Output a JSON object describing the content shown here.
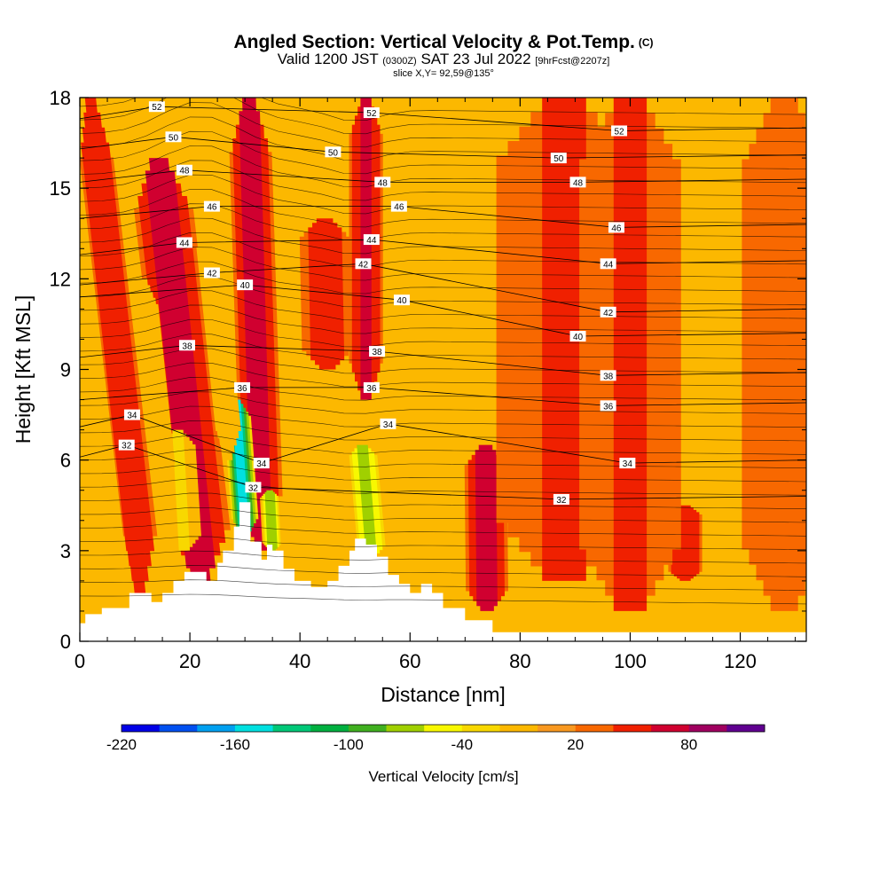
{
  "header": {
    "title": "Angled Section: Vertical Velocity & Pot.Temp.",
    "title_mark": "(C)",
    "valid_prefix": "Valid 1200 JST",
    "valid_z": "(0300Z)",
    "valid_date": "SAT 23 Jul 2022",
    "forecast": "[9hrFcst@2207z]",
    "slice": "slice X,Y= 92,59@135°"
  },
  "chart_data": {
    "type": "heatmap",
    "xlabel": "Distance [nm]",
    "ylabel": "Height [Kft MSL]",
    "xlim": [
      0,
      132
    ],
    "ylim": [
      0,
      18
    ],
    "x_ticks": [
      "0",
      "20",
      "40",
      "60",
      "80",
      "100",
      "120"
    ],
    "y_ticks": [
      "0",
      "3",
      "6",
      "9",
      "12",
      "15",
      "18"
    ],
    "background_color": "#fcb800",
    "colorbar": {
      "label": "Vertical Velocity [cm/s]",
      "tick_labels": [
        "-220",
        "-160",
        "-100",
        "-40",
        "20",
        "80"
      ],
      "colors": [
        "#0000e6",
        "#0050f0",
        "#00a0f0",
        "#00e0e0",
        "#00c878",
        "#00b040",
        "#40b020",
        "#a0d000",
        "#f8f800",
        "#f8d800",
        "#fcb800",
        "#f89820",
        "#f86800",
        "#f02000",
        "#d00030",
        "#a00060",
        "#600090"
      ]
    },
    "topography": [
      [
        0,
        0.6
      ],
      [
        1,
        0.9
      ],
      [
        4,
        1.1
      ],
      [
        9,
        1.6
      ],
      [
        13,
        1.3
      ],
      [
        15,
        1.6
      ],
      [
        17,
        2.0
      ],
      [
        19,
        2.3
      ],
      [
        23,
        2.0
      ],
      [
        25,
        2.6
      ],
      [
        26,
        3.0
      ],
      [
        28,
        3.8
      ],
      [
        29,
        4.6
      ],
      [
        31,
        3.3
      ],
      [
        33,
        2.7
      ],
      [
        34,
        3.2
      ],
      [
        35,
        3.0
      ],
      [
        37,
        2.4
      ],
      [
        39,
        2.0
      ],
      [
        42,
        1.8
      ],
      [
        45,
        2.0
      ],
      [
        47,
        2.5
      ],
      [
        49,
        3.0
      ],
      [
        50,
        3.4
      ],
      [
        52,
        3.2
      ],
      [
        54,
        2.8
      ],
      [
        56,
        2.2
      ],
      [
        58,
        1.9
      ],
      [
        60,
        1.6
      ],
      [
        62,
        1.9
      ],
      [
        64,
        1.6
      ],
      [
        66,
        1.1
      ],
      [
        70,
        0.7
      ],
      [
        75,
        0.3
      ],
      [
        84,
        0.3
      ],
      [
        132,
        0.3
      ]
    ],
    "updraft_bands": [
      {
        "x": 11,
        "y0": 1.5,
        "y1": 18,
        "tilt": 0.55,
        "w": 2.0,
        "v": 35
      },
      {
        "x": 22,
        "y0": 2.0,
        "y1": 16,
        "tilt": 0.55,
        "w": 3.5,
        "v": 50
      },
      {
        "x": 33,
        "y0": 3.0,
        "y1": 18,
        "tilt": 0.15,
        "w": 2.5,
        "v": 50
      },
      {
        "x": 45,
        "y0": 9.0,
        "y1": 14,
        "tilt": 0.1,
        "w": 3.0,
        "v": 30
      },
      {
        "x": 52,
        "y0": 8.0,
        "y1": 18,
        "tilt": 0.0,
        "w": 2.0,
        "v": 45
      },
      {
        "x": 74,
        "y0": 1.0,
        "y1": 6.5,
        "tilt": 0.05,
        "w": 2.5,
        "v": 50
      },
      {
        "x": 110,
        "y0": 2.0,
        "y1": 4.5,
        "tilt": 0.0,
        "w": 2.0,
        "v": 35
      },
      {
        "x": 88,
        "y0": 2.0,
        "y1": 18,
        "tilt": 0.0,
        "w": 8.0,
        "v": 20
      },
      {
        "x": 100,
        "y0": 1.0,
        "y1": 18,
        "tilt": 0.0,
        "w": 6.0,
        "v": 20
      },
      {
        "x": 128,
        "y0": 1.0,
        "y1": 18,
        "tilt": 0.0,
        "w": 5.0,
        "v": 18
      }
    ],
    "downdraft_bands": [
      {
        "x": 30,
        "y0": 3.5,
        "y1": 8.0,
        "tilt": 0.35,
        "w": 1.6,
        "v": -180
      },
      {
        "x": 35,
        "y0": 3.0,
        "y1": 5.0,
        "tilt": 0.25,
        "w": 1.2,
        "v": -100
      },
      {
        "x": 53,
        "y0": 2.8,
        "y1": 6.5,
        "tilt": 0.45,
        "w": 2.0,
        "v": -90
      },
      {
        "x": 19,
        "y0": 3.0,
        "y1": 7.0,
        "tilt": 0.3,
        "w": 2.0,
        "v": -45
      },
      {
        "x": 15,
        "y0": 5.0,
        "y1": 12.0,
        "tilt": 0.5,
        "w": 1.5,
        "v": -40
      },
      {
        "x": 27,
        "y0": 6.0,
        "y1": 14.0,
        "tilt": 0.5,
        "w": 1.5,
        "v": -40
      }
    ],
    "isentrope_labels": [
      {
        "text": "52",
        "x": 14,
        "y": 17.7
      },
      {
        "text": "50",
        "x": 17,
        "y": 16.7
      },
      {
        "text": "48",
        "x": 19,
        "y": 15.6
      },
      {
        "text": "46",
        "x": 24,
        "y": 14.4
      },
      {
        "text": "44",
        "x": 19,
        "y": 13.2
      },
      {
        "text": "42",
        "x": 24,
        "y": 12.2
      },
      {
        "text": "40",
        "x": 30,
        "y": 11.8
      },
      {
        "text": "38",
        "x": 19.5,
        "y": 9.8
      },
      {
        "text": "36",
        "x": 29.5,
        "y": 8.4
      },
      {
        "text": "34",
        "x": 9.5,
        "y": 7.5
      },
      {
        "text": "32",
        "x": 8.5,
        "y": 6.5
      },
      {
        "text": "34",
        "x": 33,
        "y": 5.9
      },
      {
        "text": "32",
        "x": 31.5,
        "y": 5.1
      },
      {
        "text": "52",
        "x": 53,
        "y": 17.5
      },
      {
        "text": "50",
        "x": 46,
        "y": 16.2
      },
      {
        "text": "48",
        "x": 55,
        "y": 15.2
      },
      {
        "text": "46",
        "x": 58,
        "y": 14.4
      },
      {
        "text": "44",
        "x": 53,
        "y": 13.3
      },
      {
        "text": "42",
        "x": 51.5,
        "y": 12.5
      },
      {
        "text": "40",
        "x": 58.5,
        "y": 11.3
      },
      {
        "text": "38",
        "x": 54,
        "y": 9.6
      },
      {
        "text": "36",
        "x": 53,
        "y": 8.4
      },
      {
        "text": "34",
        "x": 56,
        "y": 7.2
      },
      {
        "text": "52",
        "x": 98,
        "y": 16.9
      },
      {
        "text": "50",
        "x": 87,
        "y": 16.0
      },
      {
        "text": "48",
        "x": 90.5,
        "y": 15.2
      },
      {
        "text": "46",
        "x": 97.5,
        "y": 13.7
      },
      {
        "text": "44",
        "x": 96,
        "y": 12.5
      },
      {
        "text": "42",
        "x": 96,
        "y": 10.9
      },
      {
        "text": "40",
        "x": 90.5,
        "y": 10.1
      },
      {
        "text": "38",
        "x": 96,
        "y": 8.8
      },
      {
        "text": "36",
        "x": 96,
        "y": 7.8
      },
      {
        "text": "34",
        "x": 99.5,
        "y": 5.9
      },
      {
        "text": "32",
        "x": 87.5,
        "y": 4.7
      }
    ]
  }
}
